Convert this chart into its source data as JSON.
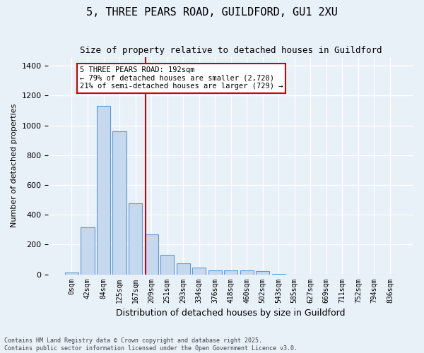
{
  "title": "5, THREE PEARS ROAD, GUILDFORD, GU1 2XU",
  "subtitle": "Size of property relative to detached houses in Guildford",
  "xlabel": "Distribution of detached houses by size in Guildford",
  "ylabel": "Number of detached properties",
  "bar_color": "#c5d8ed",
  "bar_edge_color": "#5b9bd5",
  "background_color": "#e8f0f8",
  "grid_color": "#ffffff",
  "bin_labels": [
    "0sqm",
    "42sqm",
    "84sqm",
    "125sqm",
    "167sqm",
    "209sqm",
    "251sqm",
    "293sqm",
    "334sqm",
    "376sqm",
    "418sqm",
    "460sqm",
    "502sqm",
    "543sqm",
    "585sqm",
    "627sqm",
    "669sqm",
    "711sqm",
    "752sqm",
    "794sqm",
    "836sqm"
  ],
  "values": [
    10,
    315,
    1130,
    960,
    475,
    270,
    130,
    75,
    45,
    25,
    28,
    25,
    20,
    5,
    0,
    0,
    0,
    0,
    0,
    0,
    0
  ],
  "ylim": [
    0,
    1460
  ],
  "yticks": [
    0,
    200,
    400,
    600,
    800,
    1000,
    1200,
    1400
  ],
  "vline_x": 4.62,
  "vline_color": "#cc0000",
  "annotation_title": "5 THREE PEARS ROAD: 192sqm",
  "annotation_line1": "← 79% of detached houses are smaller (2,720)",
  "annotation_line2": "21% of semi-detached houses are larger (729) →",
  "annotation_box_facecolor": "#ffffff",
  "annotation_box_edgecolor": "#cc0000",
  "footnote1": "Contains HM Land Registry data © Crown copyright and database right 2025.",
  "footnote2": "Contains public sector information licensed under the Open Government Licence v3.0."
}
